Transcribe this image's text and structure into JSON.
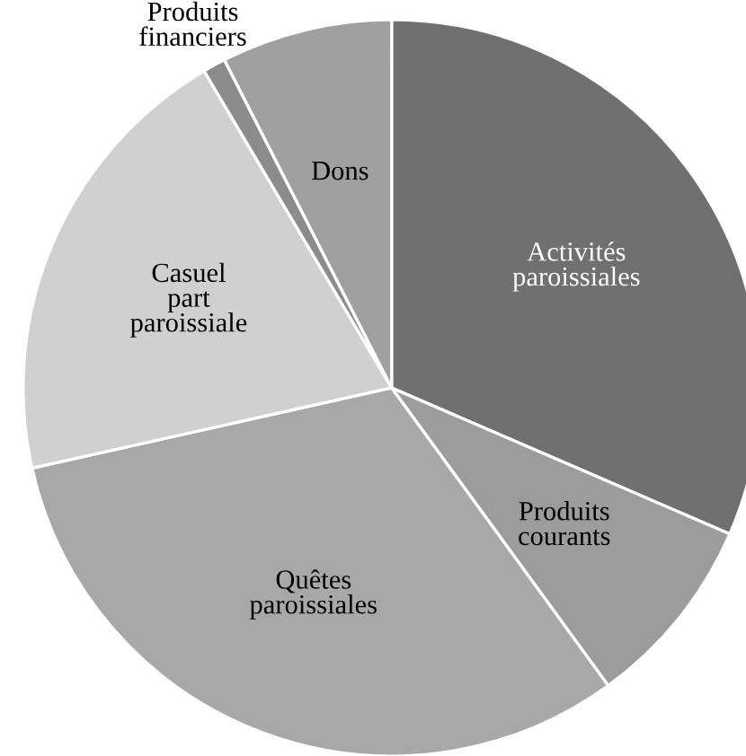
{
  "chart_data": {
    "type": "pie",
    "categories": [
      "Activités\nparoissiales",
      "Produits\ncourants",
      "Quêtes\nparoissiales",
      "Casuel\npart\nparoissiale",
      "Produits\nfinanciers",
      "Dons"
    ],
    "values": [
      31.5,
      8.5,
      31.5,
      20,
      1,
      7.5
    ],
    "colors": [
      "#707070",
      "#9c9c9c",
      "#a8a8a8",
      "#d0d0d0",
      "#8c8c8c",
      "#a0a0a0"
    ]
  }
}
